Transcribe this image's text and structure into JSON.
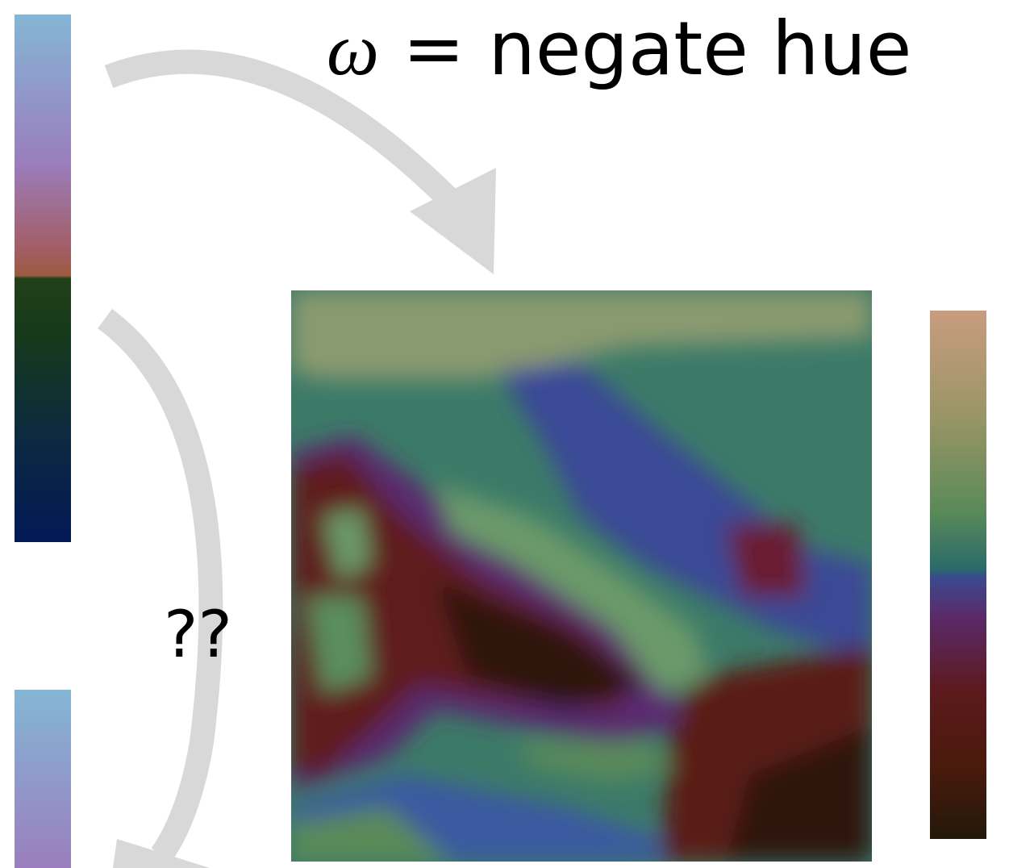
{
  "title": {
    "symbol": "ω",
    "text": "= negate hue"
  },
  "question": "??"
}
